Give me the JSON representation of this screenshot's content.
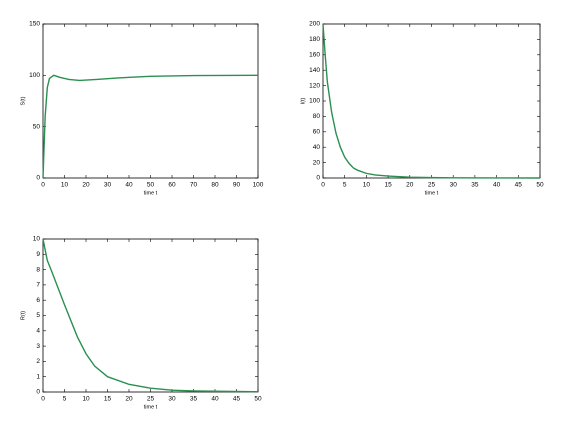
{
  "chart_data": [
    {
      "type": "line",
      "xlabel": "time t",
      "ylabel": "S(t)",
      "x": [
        0,
        1,
        2,
        3,
        5,
        8,
        12,
        17,
        25,
        35,
        50,
        70,
        100
      ],
      "values": [
        0,
        60,
        88,
        97,
        100,
        98,
        96,
        95,
        96,
        97.5,
        99,
        99.8,
        100
      ],
      "color": "#2a9050",
      "xlim": [
        0,
        100
      ],
      "xticks": [
        0,
        10,
        20,
        30,
        40,
        50,
        60,
        70,
        80,
        90,
        100
      ],
      "ylim": [
        0,
        150
      ],
      "yticks": [
        0,
        50,
        100,
        150
      ]
    },
    {
      "type": "line",
      "xlabel": "time t",
      "ylabel": "I(t)",
      "x": [
        0,
        0.5,
        1,
        2,
        3,
        4,
        5,
        6,
        7,
        8,
        10,
        12,
        15,
        20,
        25,
        30,
        40,
        50
      ],
      "values": [
        200,
        160,
        125,
        85,
        58,
        40,
        27,
        19,
        13,
        10,
        6,
        4,
        2.5,
        1,
        0.5,
        0.2,
        0.05,
        0
      ],
      "color": "#2a9050",
      "xlim": [
        0,
        50
      ],
      "xticks": [
        0,
        5,
        10,
        15,
        20,
        25,
        30,
        35,
        40,
        45,
        50
      ],
      "ylim": [
        0,
        200
      ],
      "yticks": [
        0,
        20,
        40,
        60,
        80,
        100,
        120,
        140,
        160,
        180,
        200
      ]
    },
    {
      "type": "line",
      "xlabel": "time t",
      "ylabel": "R(t)",
      "x": [
        0,
        1,
        2,
        5,
        8,
        10,
        12,
        15,
        20,
        25,
        30,
        35,
        40,
        50
      ],
      "values": [
        10,
        8.6,
        7.9,
        5.7,
        3.6,
        2.5,
        1.7,
        1.0,
        0.5,
        0.25,
        0.12,
        0.07,
        0.05,
        0.02
      ],
      "color": "#2a9050",
      "xlim": [
        0,
        50
      ],
      "xticks": [
        0,
        5,
        10,
        15,
        20,
        25,
        30,
        35,
        40,
        45,
        50
      ],
      "ylim": [
        0,
        10
      ],
      "yticks": [
        0,
        1,
        2,
        3,
        4,
        5,
        6,
        7,
        8,
        9,
        10
      ]
    }
  ]
}
